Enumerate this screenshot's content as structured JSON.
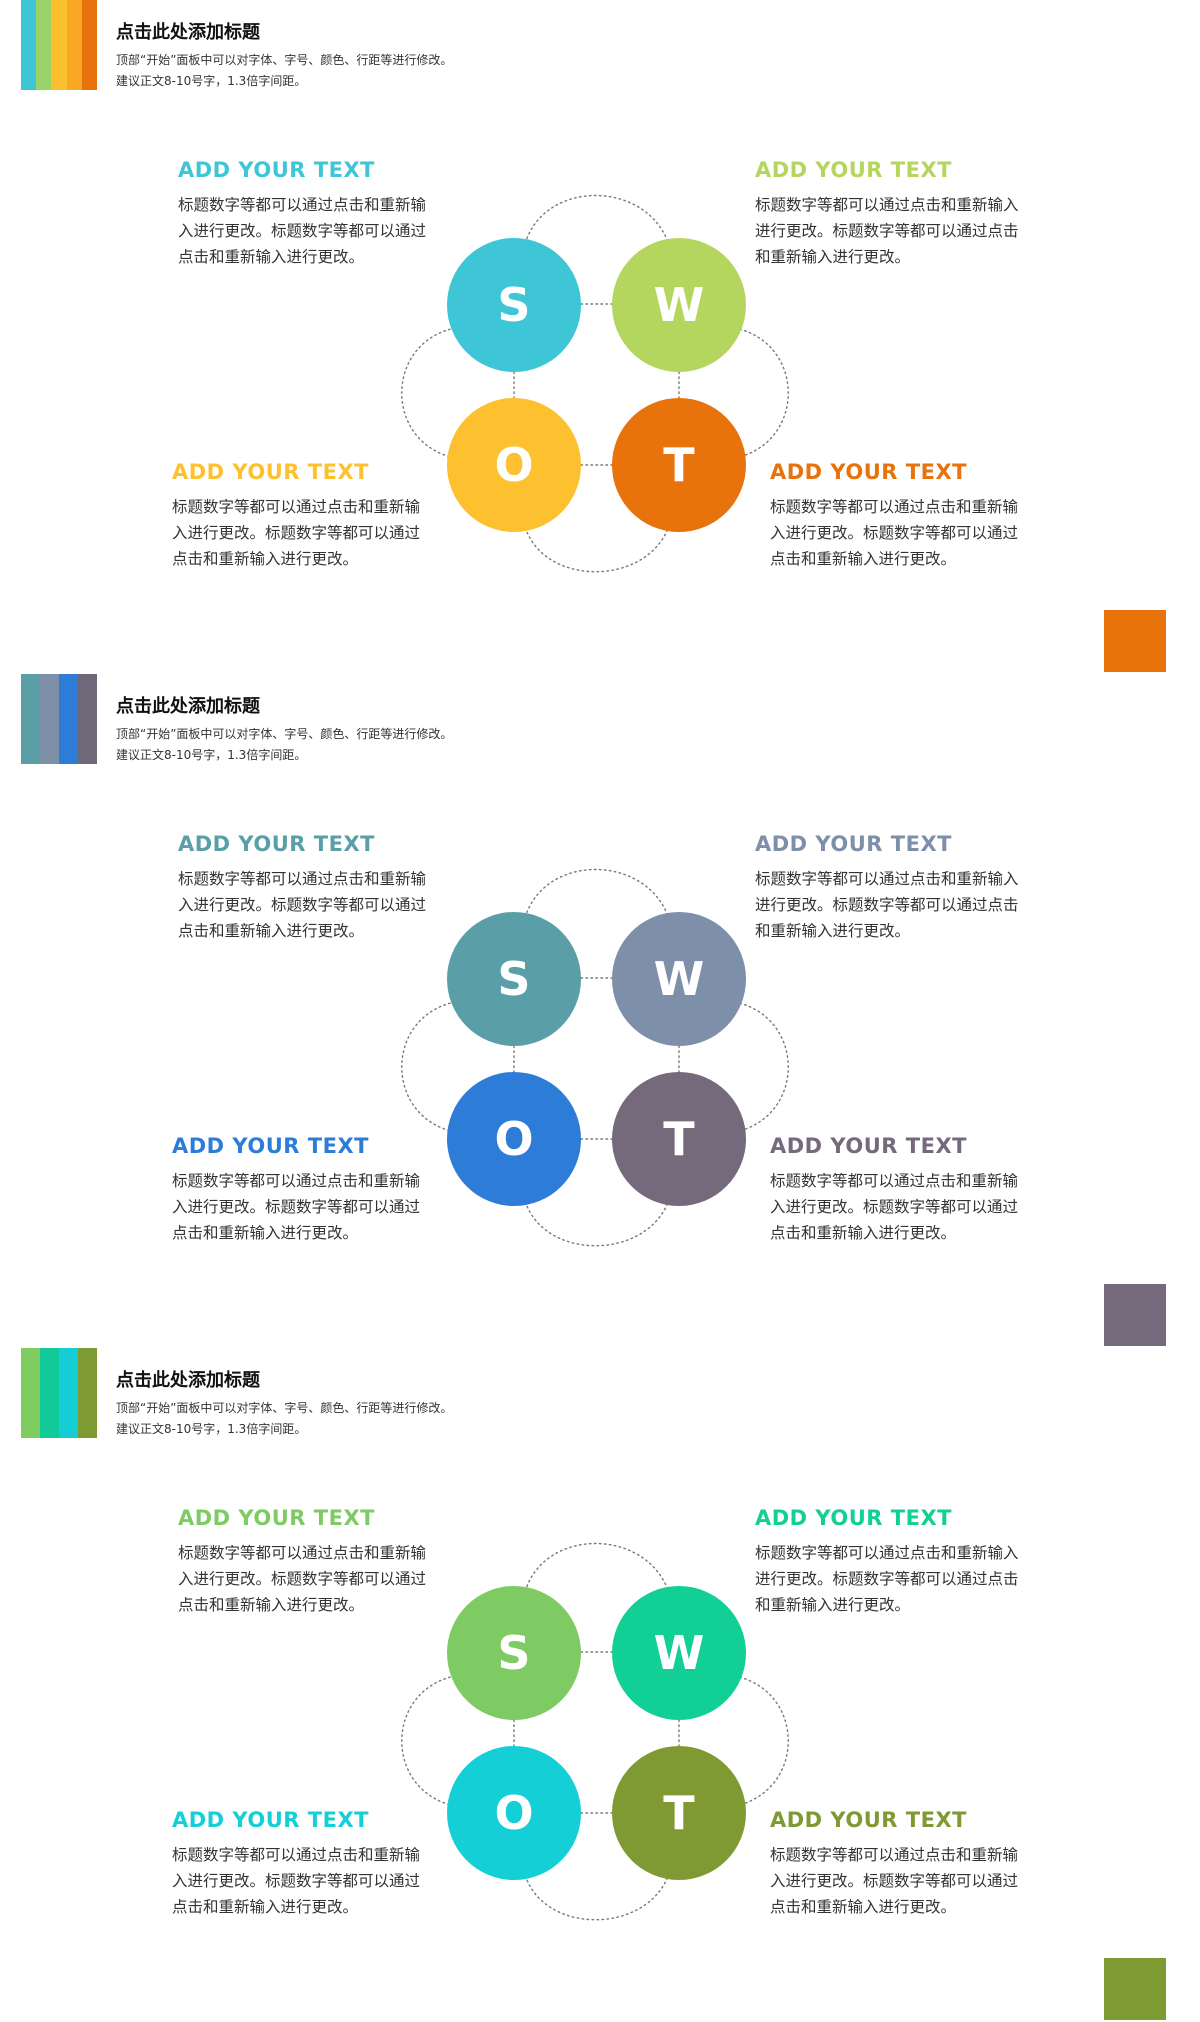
{
  "slides": [
    {
      "header": {
        "bars": [
          "#3ec6d6",
          "#9ad26a",
          "#fbc02d",
          "#f9a825",
          "#e8720c"
        ],
        "title": "点击此处添加标题",
        "body": "顶部“开始”面板中可以对字体、字号、颜色、行距等进行修改。建议正文8-10号字，1.3倍字间距。"
      },
      "corner_color": "#e8720c",
      "swot": {
        "s": {
          "letter": "S",
          "color": "#3ec6d6"
        },
        "w": {
          "letter": "W",
          "color": "#b5d65e"
        },
        "o": {
          "letter": "O",
          "color": "#fdc02f"
        },
        "t": {
          "letter": "T",
          "color": "#e8720c"
        }
      },
      "blocks": {
        "tl": {
          "heading": "ADD YOUR TEXT",
          "color": "#3ec6d6",
          "body": "标题数字等都可以通过点击和重新输入进行更改。标题数字等都可以通过点击和重新输入进行更改。"
        },
        "tr": {
          "heading": "ADD YOUR TEXT",
          "color": "#b5d65e",
          "body": "标题数字等都可以通过点击和重新输入进行更改。标题数字等都可以通过点击和重新输入进行更改。"
        },
        "bl": {
          "heading": "ADD YOUR TEXT",
          "color": "#fdc02f",
          "body": "标题数字等都可以通过点击和重新输入进行更改。标题数字等都可以通过点击和重新输入进行更改。"
        },
        "br": {
          "heading": "ADD YOUR TEXT",
          "color": "#e8720c",
          "body": "标题数字等都可以通过点击和重新输入进行更改。标题数字等都可以通过点击和重新输入进行更改。"
        }
      }
    },
    {
      "header": {
        "bars": [
          "#5b9ea6",
          "#7e8fa8",
          "#2d7cd6",
          "#6f6878"
        ],
        "title": "点击此处添加标题",
        "body": "顶部“开始”面板中可以对字体、字号、颜色、行距等进行修改。建议正文8-10号字，1.3倍字间距。"
      },
      "corner_color": "#756a7c",
      "swot": {
        "s": {
          "letter": "S",
          "color": "#5a9fa7"
        },
        "w": {
          "letter": "W",
          "color": "#7d8fa9"
        },
        "o": {
          "letter": "O",
          "color": "#2d7dd8"
        },
        "t": {
          "letter": "T",
          "color": "#756a7c"
        }
      },
      "blocks": {
        "tl": {
          "heading": "ADD YOUR TEXT",
          "color": "#5a9fa7",
          "body": "标题数字等都可以通过点击和重新输入进行更改。标题数字等都可以通过点击和重新输入进行更改。"
        },
        "tr": {
          "heading": "ADD YOUR TEXT",
          "color": "#7d8fa9",
          "body": "标题数字等都可以通过点击和重新输入进行更改。标题数字等都可以通过点击和重新输入进行更改。"
        },
        "bl": {
          "heading": "ADD YOUR TEXT",
          "color": "#2d7dd8",
          "body": "标题数字等都可以通过点击和重新输入进行更改。标题数字等都可以通过点击和重新输入进行更改。"
        },
        "br": {
          "heading": "ADD YOUR TEXT",
          "color": "#756a7c",
          "body": "标题数字等都可以通过点击和重新输入进行更改。标题数字等都可以通过点击和重新输入进行更改。"
        }
      }
    },
    {
      "header": {
        "bars": [
          "#7fcd60",
          "#12c99a",
          "#15cdd4",
          "#7d9a33"
        ],
        "title": "点击此处添加标题",
        "body": "顶部“开始”面板中可以对字体、字号、颜色、行距等进行修改。建议正文8-10号字，1.3倍字间距。"
      },
      "corner_color": "#7d9a33",
      "swot": {
        "s": {
          "letter": "S",
          "color": "#7ecb63"
        },
        "w": {
          "letter": "W",
          "color": "#12cf95"
        },
        "o": {
          "letter": "O",
          "color": "#14cfd6"
        },
        "t": {
          "letter": "T",
          "color": "#7f9a33"
        }
      },
      "blocks": {
        "tl": {
          "heading": "ADD YOUR TEXT",
          "color": "#7ecb63",
          "body": "标题数字等都可以通过点击和重新输入进行更改。标题数字等都可以通过点击和重新输入进行更改。"
        },
        "tr": {
          "heading": "ADD YOUR TEXT",
          "color": "#12cf95",
          "body": "标题数字等都可以通过点击和重新输入进行更改。标题数字等都可以通过点击和重新输入进行更改。"
        },
        "bl": {
          "heading": "ADD YOUR TEXT",
          "color": "#14cfd6",
          "body": "标题数字等都可以通过点击和重新输入进行更改。标题数字等都可以通过点击和重新输入进行更改。"
        },
        "br": {
          "heading": "ADD YOUR TEXT",
          "color": "#7f9a33",
          "body": "标题数字等都可以通过点击和重新输入进行更改。标题数字等都可以通过点击和重新输入进行更改。"
        }
      }
    }
  ]
}
